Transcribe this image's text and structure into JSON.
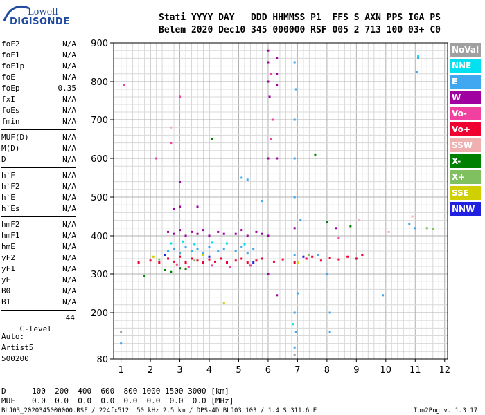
{
  "logo": {
    "top": "Lowell",
    "bottom": "DIGISONDE"
  },
  "header": {
    "line1": "Stati YYYY DAY   DDD HHMMSS P1  FFS S AXN PPS IGA PS",
    "line2": "Belem 2020 Dec10 345 000000 RSF 005 2 713 100 03+ C0"
  },
  "params": {
    "group1": [
      {
        "name": "foF2",
        "value": "N/A"
      },
      {
        "name": "foF1",
        "value": "N/A"
      },
      {
        "name": "foF1p",
        "value": "N/A"
      },
      {
        "name": "foE",
        "value": "N/A"
      },
      {
        "name": "foEp",
        "value": "0.35"
      },
      {
        "name": "fxI",
        "value": "N/A"
      },
      {
        "name": "foEs",
        "value": "N/A"
      },
      {
        "name": "fmin",
        "value": "N/A"
      }
    ],
    "group2": [
      {
        "name": "MUF(D)",
        "value": "N/A"
      },
      {
        "name": "M(D)",
        "value": "N/A"
      },
      {
        "name": "D",
        "value": "N/A"
      }
    ],
    "group3": [
      {
        "name": "h`F",
        "value": "N/A"
      },
      {
        "name": "h`F2",
        "value": "N/A"
      },
      {
        "name": "h`E",
        "value": "N/A"
      },
      {
        "name": "h`Es",
        "value": "N/A"
      }
    ],
    "group4": [
      {
        "name": "hmF2",
        "value": "N/A"
      },
      {
        "name": "hmF1",
        "value": "N/A"
      },
      {
        "name": "hmE",
        "value": "N/A"
      },
      {
        "name": "yF2",
        "value": "N/A"
      },
      {
        "name": "yF1",
        "value": "N/A"
      },
      {
        "name": "yE",
        "value": "N/A"
      },
      {
        "name": "B0",
        "value": "N/A"
      },
      {
        "name": "B1",
        "value": "N/A"
      }
    ],
    "clevel": {
      "name": "C-level",
      "value": "44"
    }
  },
  "auto": {
    "line1": "Auto:",
    "line2": "Artist5",
    "line3": "500200"
  },
  "legend": [
    {
      "label": "NoVal",
      "color": "#a0a0a0"
    },
    {
      "label": "NNE",
      "color": "#00e0f0"
    },
    {
      "label": "E",
      "color": "#40a8f0"
    },
    {
      "label": "W",
      "color": "#a000a0"
    },
    {
      "label": "Vo-",
      "color": "#f040a0"
    },
    {
      "label": "Vo+",
      "color": "#f00030"
    },
    {
      "label": "SSW",
      "color": "#f0b0b0"
    },
    {
      "label": "X-",
      "color": "#008000"
    },
    {
      "label": "X+",
      "color": "#80c060"
    },
    {
      "label": "SSE",
      "color": "#d0d000"
    },
    {
      "label": "NNW",
      "color": "#2020e0"
    }
  ],
  "footer": {
    "d_label": "D",
    "d_values": "100  200  400  600  800 1000 1500 3000 [km]",
    "muf_label": "MUF",
    "muf_values": "0.0  0.0  0.0  0.0  0.0  0.0  0.0  0.0 [MHz]",
    "file_info": "BLJ03_2020345000000.RSF / 224fx512h 50 kHz 2.5 km / DPS-4D BLJ03 103 / 1.4 S 311.6 E",
    "version": "Ion2Png v. 1.3.17"
  },
  "chart_data": {
    "type": "scatter",
    "xlim": [
      0.75,
      12.1
    ],
    "ylim": [
      80,
      900
    ],
    "x_ticks": [
      1,
      2,
      3,
      4,
      5,
      6,
      7,
      8,
      9,
      10,
      11,
      12
    ],
    "y_ticks": [
      80,
      200,
      300,
      400,
      500,
      600,
      700,
      800,
      900
    ],
    "grid": true,
    "series": [
      {
        "name": "Vo+",
        "color": "#f00030",
        "points": [
          [
            1.6,
            330
          ],
          [
            2.0,
            335
          ],
          [
            2.3,
            330
          ],
          [
            2.6,
            340
          ],
          [
            2.8,
            332
          ],
          [
            3.0,
            345
          ],
          [
            3.2,
            330
          ],
          [
            3.4,
            340
          ],
          [
            3.6,
            335
          ],
          [
            3.8,
            330
          ],
          [
            4.0,
            338
          ],
          [
            4.2,
            332
          ],
          [
            4.4,
            340
          ],
          [
            4.6,
            330
          ],
          [
            4.9,
            335
          ],
          [
            5.1,
            340
          ],
          [
            5.3,
            330
          ],
          [
            5.6,
            335
          ],
          [
            5.8,
            340
          ],
          [
            6.2,
            332
          ],
          [
            6.5,
            338
          ],
          [
            6.9,
            330
          ],
          [
            7.3,
            340
          ],
          [
            7.5,
            345
          ],
          [
            7.8,
            335
          ],
          [
            8.1,
            342
          ],
          [
            8.4,
            338
          ],
          [
            8.7,
            345
          ],
          [
            9.0,
            340
          ],
          [
            9.2,
            350
          ]
        ]
      },
      {
        "name": "W",
        "color": "#a000a0",
        "points": [
          [
            2.6,
            410
          ],
          [
            2.8,
            405
          ],
          [
            3.0,
            415
          ],
          [
            3.2,
            400
          ],
          [
            3.4,
            410
          ],
          [
            3.6,
            405
          ],
          [
            3.8,
            415
          ],
          [
            4.0,
            400
          ],
          [
            4.3,
            410
          ],
          [
            4.5,
            405
          ],
          [
            4.9,
            405
          ],
          [
            5.1,
            415
          ],
          [
            5.3,
            400
          ],
          [
            5.6,
            410
          ],
          [
            5.8,
            405
          ],
          [
            2.8,
            470
          ],
          [
            3.0,
            475
          ],
          [
            3.6,
            475
          ],
          [
            6.0,
            800
          ],
          [
            6.0,
            850
          ],
          [
            6.0,
            880
          ],
          [
            6.3,
            860
          ],
          [
            6.3,
            820
          ],
          [
            6.3,
            790
          ],
          [
            6.05,
            760
          ],
          [
            6.0,
            600
          ],
          [
            6.3,
            600
          ],
          [
            6.0,
            400
          ],
          [
            6.3,
            245
          ],
          [
            6.0,
            300
          ],
          [
            3.0,
            540
          ],
          [
            6.9,
            420
          ],
          [
            8.3,
            420
          ]
        ]
      },
      {
        "name": "E",
        "color": "#40a8f0",
        "points": [
          [
            2.6,
            360
          ],
          [
            2.8,
            365
          ],
          [
            3.0,
            355
          ],
          [
            3.2,
            370
          ],
          [
            3.4,
            360
          ],
          [
            3.6,
            365
          ],
          [
            3.8,
            355
          ],
          [
            4.0,
            370
          ],
          [
            4.3,
            360
          ],
          [
            4.5,
            365
          ],
          [
            4.9,
            360
          ],
          [
            5.1,
            370
          ],
          [
            5.3,
            355
          ],
          [
            5.5,
            365
          ],
          [
            6.9,
            350
          ],
          [
            6.9,
            500
          ],
          [
            6.9,
            600
          ],
          [
            6.9,
            700
          ],
          [
            6.95,
            780
          ],
          [
            6.9,
            850
          ],
          [
            6.9,
            200
          ],
          [
            6.95,
            150
          ],
          [
            6.9,
            110
          ],
          [
            7.0,
            250
          ],
          [
            7.1,
            440
          ],
          [
            7.7,
            350
          ],
          [
            8.0,
            300
          ],
          [
            8.1,
            200
          ],
          [
            8.1,
            150
          ],
          [
            11.05,
            825
          ],
          [
            11.1,
            860
          ],
          [
            11.0,
            420
          ],
          [
            10.8,
            430
          ],
          [
            9.9,
            245
          ],
          [
            5.1,
            550
          ],
          [
            5.3,
            545
          ],
          [
            5.8,
            490
          ],
          [
            1.0,
            120
          ]
        ]
      },
      {
        "name": "NNE",
        "color": "#00e0f0",
        "points": [
          [
            2.7,
            380
          ],
          [
            3.1,
            385
          ],
          [
            3.5,
            378
          ],
          [
            4.1,
            382
          ],
          [
            4.6,
            380
          ],
          [
            5.2,
            378
          ],
          [
            11.1,
            865
          ],
          [
            6.85,
            170
          ]
        ]
      },
      {
        "name": "Vo-",
        "color": "#f040a0",
        "points": [
          [
            2.9,
            325
          ],
          [
            3.3,
            318
          ],
          [
            4.1,
            322
          ],
          [
            4.7,
            318
          ],
          [
            5.4,
            322
          ],
          [
            6.1,
            820
          ],
          [
            6.15,
            700
          ],
          [
            6.1,
            650
          ],
          [
            2.7,
            640
          ],
          [
            2.2,
            600
          ],
          [
            3.0,
            760
          ],
          [
            1.1,
            790
          ],
          [
            8.4,
            395
          ]
        ]
      },
      {
        "name": "X-",
        "color": "#008000",
        "points": [
          [
            1.8,
            295
          ],
          [
            2.5,
            310
          ],
          [
            2.7,
            305
          ],
          [
            3.0,
            315
          ],
          [
            3.2,
            312
          ],
          [
            4.1,
            650
          ],
          [
            8.0,
            435
          ],
          [
            8.8,
            425
          ],
          [
            7.6,
            610
          ]
        ]
      },
      {
        "name": "X+",
        "color": "#80c060",
        "points": [
          [
            2.3,
            338
          ],
          [
            3.5,
            335
          ],
          [
            7.4,
            350
          ],
          [
            11.4,
            420
          ],
          [
            11.6,
            418
          ]
        ]
      },
      {
        "name": "SSE",
        "color": "#d0d000",
        "points": [
          [
            2.1,
            345
          ],
          [
            3.8,
            350
          ],
          [
            7.0,
            330
          ],
          [
            4.5,
            225
          ]
        ]
      },
      {
        "name": "SSW",
        "color": "#f0b0b0",
        "points": [
          [
            2.7,
            680
          ],
          [
            10.1,
            410
          ],
          [
            10.9,
            450
          ],
          [
            9.1,
            440
          ]
        ]
      },
      {
        "name": "NNW",
        "color": "#2020e0",
        "points": [
          [
            2.5,
            350
          ],
          [
            4.0,
            345
          ],
          [
            7.2,
            345
          ],
          [
            5.5,
            330
          ]
        ]
      },
      {
        "name": "NoVal",
        "color": "#a0a0a0",
        "points": [
          [
            1.0,
            150
          ],
          [
            6.9,
            90
          ]
        ]
      }
    ]
  }
}
